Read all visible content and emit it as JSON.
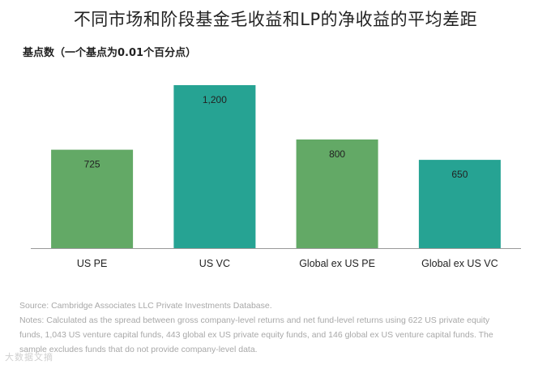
{
  "title": "不同市场和阶段基金毛收益和LP的净收益的平均差距",
  "chart_data": {
    "type": "bar",
    "title": "不同市场和阶段基金毛收益和LP的净收益的平均差距",
    "ylabel": "基点数（一个基点为0.01个百分点）",
    "xlabel": "",
    "categories": [
      "US PE",
      "US VC",
      "Global ex US PE",
      "Global ex US VC"
    ],
    "values": [
      725,
      1200,
      800,
      650
    ],
    "value_labels": [
      "725",
      "1,200",
      "800",
      "650"
    ],
    "ylim": [
      0,
      1200
    ],
    "grid": false,
    "legend": "none",
    "colors": [
      "#63a966",
      "#26a393",
      "#63a966",
      "#26a393"
    ]
  },
  "notes": {
    "source": "Source: Cambridge Associates LLC Private Investments Database.",
    "line1": "Notes: Calculated as the spread between gross company-level returns and net fund-level returns using 622 US private equity",
    "line2": "funds, 1,043 US venture capital funds, 443 global ex US private equity funds, and 146 global ex US venture capital funds. The",
    "line3": "sample excludes funds that do not provide company-level data."
  },
  "watermark": "大数据文摘"
}
